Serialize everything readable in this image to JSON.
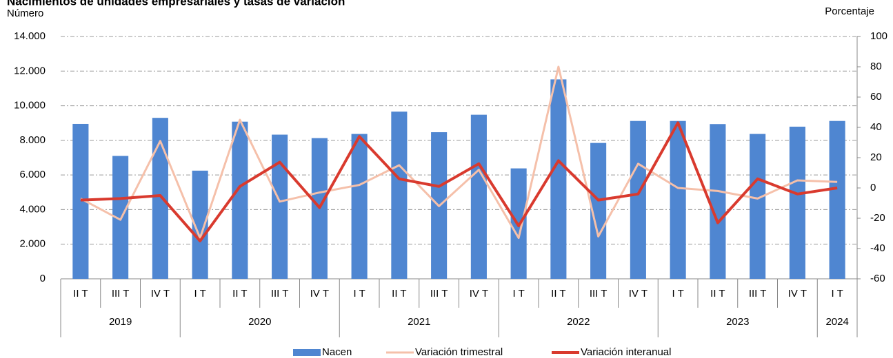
{
  "chart_data": {
    "type": "bar-line",
    "title": "Nacimientos de unidades empresariales y tasas de variación",
    "ylabel": "Número",
    "y2label": "Porcentaje",
    "categories": [
      "II T",
      "III T",
      "IV T",
      "I T",
      "II T",
      "III T",
      "IV T",
      "I T",
      "II T",
      "III T",
      "IV T",
      "I T",
      "II T",
      "III T",
      "IV T",
      "I T",
      "II T",
      "III T",
      "IV T",
      "I T"
    ],
    "groups": [
      {
        "label": "2019",
        "count": 3
      },
      {
        "label": "2020",
        "count": 4
      },
      {
        "label": "2021",
        "count": 4
      },
      {
        "label": "2022",
        "count": 4
      },
      {
        "label": "2023",
        "count": 4
      },
      {
        "label": "2024",
        "count": 1
      }
    ],
    "series": [
      {
        "name": "Nacen",
        "type": "bar",
        "color": "#4f86d1",
        "values": [
          8950,
          7100,
          9300,
          6250,
          9080,
          8330,
          8130,
          8370,
          9660,
          8470,
          9480,
          6380,
          11520,
          7850,
          9120,
          9120,
          8940,
          8370,
          8790,
          9120
        ]
      },
      {
        "name": "Variación trimestral",
        "type": "line",
        "axis": "y2",
        "color": "#f5c0aa",
        "values": [
          -7,
          -21,
          31,
          -33,
          45,
          -9,
          -3,
          2,
          15,
          -12,
          12,
          -33,
          80,
          -32,
          16,
          0,
          -2,
          -7,
          5,
          4
        ]
      },
      {
        "name": "Variación interanual",
        "type": "line",
        "axis": "y2",
        "color": "#d93a2e",
        "values": [
          -8,
          -7,
          -5,
          -35,
          1,
          17,
          -13,
          34,
          6,
          1,
          16,
          -25,
          18,
          -8,
          -4,
          43,
          -23,
          6,
          -4,
          0
        ]
      }
    ],
    "ylim": [
      0,
      14000
    ],
    "yticks": [
      0,
      {
        "value": 2000,
        "label": "2.000"
      },
      {
        "value": 4000,
        "label": "4.000"
      },
      {
        "value": 6000,
        "label": "6.000"
      },
      {
        "value": 8000,
        "label": "8.000"
      },
      {
        "value": 10000,
        "label": "10.000"
      },
      {
        "value": 12000,
        "label": "12.000"
      },
      {
        "value": 14000,
        "label": "14.000"
      }
    ],
    "y2lim": [
      -60,
      100
    ],
    "y2ticks": [
      -60,
      -40,
      -20,
      0,
      20,
      40,
      60,
      80,
      100
    ],
    "grid": true
  }
}
